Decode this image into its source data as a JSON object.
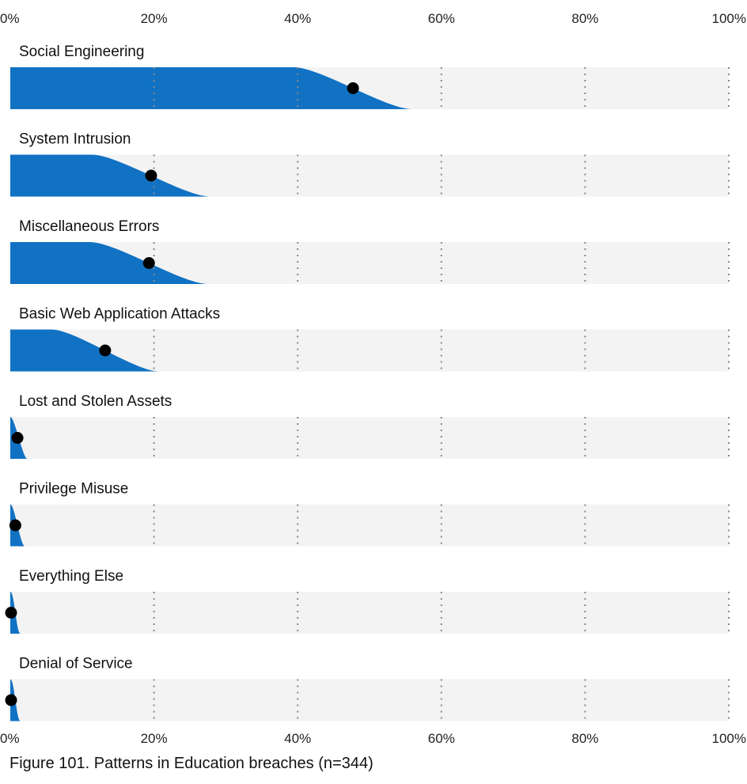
{
  "caption": "Figure 101. Patterns in Education breaches (n=344)",
  "chart_data": {
    "type": "slab",
    "x_ticks": [
      "0%",
      "20%",
      "40%",
      "60%",
      "80%",
      "100%"
    ],
    "xlim": [
      0,
      100
    ],
    "grid": true,
    "colors": {
      "fill": "#1172C4",
      "track": "#F3F3F3",
      "point": "#000000",
      "grid": "#888888"
    },
    "categories": [
      "Social Engineering",
      "System Intrusion",
      "Miscellaneous Errors",
      "Basic Web Application Attacks",
      "Lost and Stolen Assets",
      "Privilege Misuse",
      "Everything Else",
      "Denial of Service"
    ],
    "values": [
      47.7,
      19.6,
      19.3,
      13.2,
      1.0,
      0.7,
      0.1,
      0.1
    ]
  }
}
